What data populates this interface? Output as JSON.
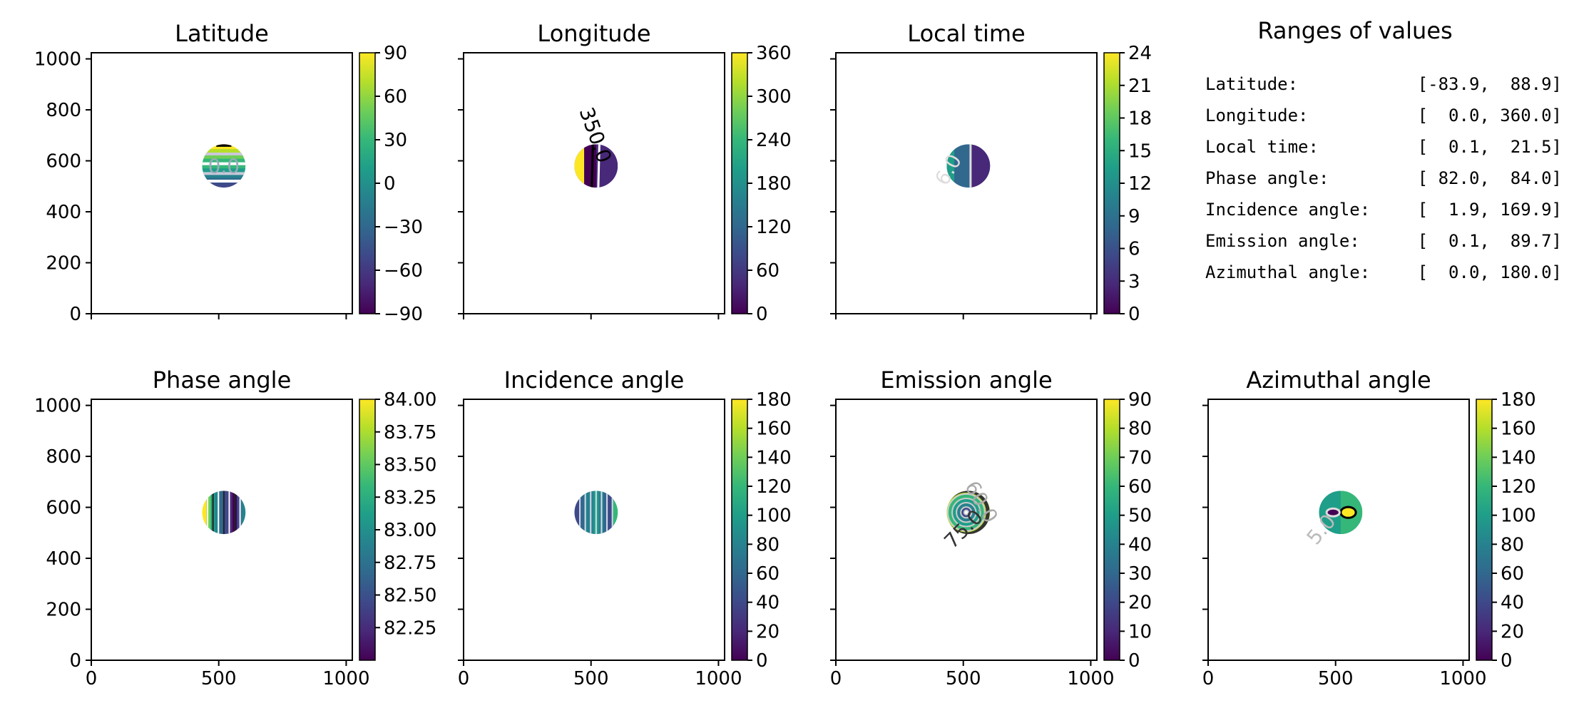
{
  "panels": [
    {
      "id": "latitude",
      "title": "Latitude",
      "cbar": {
        "min": -90,
        "max": 90,
        "ticks": [
          90,
          60,
          30,
          0,
          -30,
          -60,
          -90
        ],
        "labels": [
          "90",
          "60",
          "30",
          "0",
          "−30",
          "−60",
          "−90"
        ]
      },
      "contour_labels": [
        "0.0"
      ],
      "style": "bands-h"
    },
    {
      "id": "longitude",
      "title": "Longitude",
      "cbar": {
        "min": 0,
        "max": 360,
        "ticks": [
          360,
          300,
          240,
          180,
          120,
          60,
          0
        ],
        "labels": [
          "360",
          "300",
          "240",
          "180",
          "120",
          "60",
          "0"
        ]
      },
      "contour_labels": [
        "350.0"
      ],
      "style": "lon"
    },
    {
      "id": "local_time",
      "title": "Local time",
      "cbar": {
        "min": 0,
        "max": 24,
        "ticks": [
          24,
          21,
          18,
          15,
          12,
          9,
          6,
          3,
          0
        ],
        "labels": [
          "24",
          "21",
          "18",
          "15",
          "12",
          "9",
          "6",
          "3",
          "0"
        ]
      },
      "contour_labels": [
        "6.0"
      ],
      "style": "lt"
    },
    {
      "id": "phase_angle",
      "title": "Phase angle",
      "cbar": {
        "min": 82.0,
        "max": 84.0,
        "ticks": [
          84.0,
          83.75,
          83.5,
          83.25,
          83.0,
          82.75,
          82.5,
          82.25
        ],
        "labels": [
          "84.00",
          "83.75",
          "83.50",
          "83.25",
          "83.00",
          "82.75",
          "82.50",
          "82.25"
        ]
      },
      "contour_labels": [],
      "style": "bands-v"
    },
    {
      "id": "incidence_angle",
      "title": "Incidence angle",
      "cbar": {
        "min": 0,
        "max": 180,
        "ticks": [
          180,
          160,
          140,
          120,
          100,
          80,
          60,
          40,
          20,
          0
        ],
        "labels": [
          "180",
          "160",
          "140",
          "120",
          "100",
          "80",
          "60",
          "40",
          "20",
          "0"
        ]
      },
      "contour_labels": [],
      "style": "bands-v2"
    },
    {
      "id": "emission_angle",
      "title": "Emission angle",
      "cbar": {
        "min": 0,
        "max": 90,
        "ticks": [
          90,
          80,
          70,
          60,
          50,
          40,
          30,
          20,
          10,
          0
        ],
        "labels": [
          "90",
          "80",
          "70",
          "60",
          "50",
          "40",
          "30",
          "20",
          "10",
          "0"
        ]
      },
      "contour_labels": [
        "60.0",
        "75.0"
      ],
      "style": "rings"
    },
    {
      "id": "azimuthal_angle",
      "title": "Azimuthal angle",
      "cbar": {
        "min": 0,
        "max": 180,
        "ticks": [
          180,
          160,
          140,
          120,
          100,
          80,
          60,
          40,
          20,
          0
        ],
        "labels": [
          "180",
          "160",
          "140",
          "120",
          "100",
          "80",
          "60",
          "40",
          "20",
          "0"
        ]
      },
      "contour_labels": [
        "5.0"
      ],
      "style": "azi"
    }
  ],
  "axes": {
    "xlim": [
      0,
      1024
    ],
    "ylim": [
      0,
      1024
    ],
    "xticks": [
      0,
      500,
      1000
    ],
    "xticklabels": [
      "0",
      "500",
      "1000"
    ],
    "yticks": [
      0,
      200,
      400,
      600,
      800,
      1000
    ],
    "yticklabels": [
      "0",
      "200",
      "400",
      "600",
      "800",
      "1000"
    ]
  },
  "ranges": {
    "title": "Ranges of values",
    "rows": [
      {
        "name": "Latitude:",
        "value": "[-83.9,  88.9]"
      },
      {
        "name": "Longitude:",
        "value": "[  0.0, 360.0]"
      },
      {
        "name": "Local time:",
        "value": "[  0.1,  21.5]"
      },
      {
        "name": "Phase angle:",
        "value": "[ 82.0,  84.0]"
      },
      {
        "name": "Incidence angle:",
        "value": "[  1.9, 169.9]"
      },
      {
        "name": "Emission angle:",
        "value": "[  0.1,  89.7]"
      },
      {
        "name": "Azimuthal angle:",
        "value": "[  0.0, 180.0]"
      }
    ]
  },
  "colormap": "viridis",
  "colors": {
    "viridis": [
      "#440154",
      "#482878",
      "#3e4989",
      "#31688e",
      "#26828e",
      "#1f9e89",
      "#35b779",
      "#6ece58",
      "#b5de2b",
      "#fde725"
    ]
  },
  "chart_data": {
    "type": "heatmap",
    "image_size": [
      1024,
      1024
    ],
    "disc_center": [
      520,
      580
    ],
    "disc_radius": 85,
    "panels": [
      {
        "title": "Latitude",
        "min": -83.9,
        "max": 88.9,
        "colorbar_range": [
          -90,
          90
        ]
      },
      {
        "title": "Longitude",
        "min": 0.0,
        "max": 360.0,
        "colorbar_range": [
          0,
          360
        ]
      },
      {
        "title": "Local time",
        "min": 0.1,
        "max": 21.5,
        "colorbar_range": [
          0,
          24
        ]
      },
      {
        "title": "Phase angle",
        "min": 82.0,
        "max": 84.0,
        "colorbar_range": [
          82.0,
          84.0
        ]
      },
      {
        "title": "Incidence angle",
        "min": 1.9,
        "max": 169.9,
        "colorbar_range": [
          0,
          180
        ]
      },
      {
        "title": "Emission angle",
        "min": 0.1,
        "max": 89.7,
        "colorbar_range": [
          0,
          90
        ]
      },
      {
        "title": "Azimuthal angle",
        "min": 0.0,
        "max": 180.0,
        "colorbar_range": [
          0,
          180
        ]
      }
    ]
  }
}
